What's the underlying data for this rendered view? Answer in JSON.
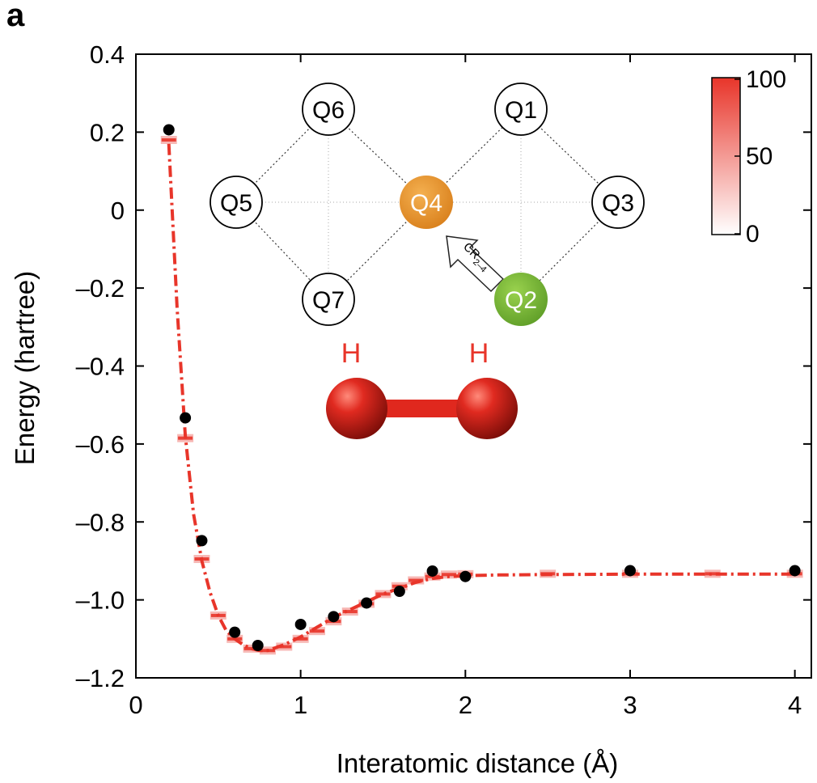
{
  "panel_label": "a",
  "chart_data": {
    "type": "line",
    "xlabel": "Interatomic distance (Å)",
    "ylabel": "Energy (hartree)",
    "xlim": [
      0,
      4.1
    ],
    "ylim": [
      -1.2,
      0.4
    ],
    "xticks": [
      0,
      1,
      2,
      3,
      4
    ],
    "xtick_labels": [
      "0",
      "1",
      "2",
      "3",
      "4"
    ],
    "yticks": [
      0.4,
      0.2,
      0,
      -0.2,
      -0.4,
      -0.6,
      -0.8,
      -1.0,
      -1.2
    ],
    "ytick_labels": [
      "0.4",
      "0.2",
      "0",
      "–0.2",
      "–0.4",
      "–0.6",
      "–0.8",
      "–1.0",
      "–1.2"
    ],
    "grid": false,
    "series": [
      {
        "style": "dash-dot line",
        "color": "#e8352a",
        "x": [
          0.2,
          0.25,
          0.3,
          0.35,
          0.4,
          0.45,
          0.5,
          0.55,
          0.6,
          0.65,
          0.7,
          0.75,
          0.8,
          0.9,
          1.0,
          1.1,
          1.2,
          1.3,
          1.4,
          1.5,
          1.6,
          1.7,
          1.8,
          1.9,
          2.0,
          2.2,
          2.5,
          3.0,
          3.5,
          4.0
        ],
        "y": [
          0.17,
          -0.25,
          -0.58,
          -0.78,
          -0.9,
          -0.98,
          -1.04,
          -1.08,
          -1.1,
          -1.115,
          -1.125,
          -1.13,
          -1.13,
          -1.115,
          -1.095,
          -1.07,
          -1.045,
          -1.025,
          -1.005,
          -0.985,
          -0.97,
          -0.955,
          -0.945,
          -0.94,
          -0.938,
          -0.936,
          -0.935,
          -0.934,
          -0.934,
          -0.934
        ]
      },
      {
        "style": "black dots",
        "color": "#000000",
        "x": [
          0.2,
          0.3,
          0.4,
          0.6,
          0.74,
          1.0,
          1.2,
          1.4,
          1.6,
          1.8,
          2.0,
          3.0,
          4.0
        ],
        "y": [
          0.206,
          -0.533,
          -0.848,
          -1.083,
          -1.117,
          -1.063,
          -1.043,
          -1.008,
          -0.978,
          -0.926,
          -0.94,
          -0.925,
          -0.925
        ]
      },
      {
        "style": "red bar markers (histogram)",
        "color": "#e8352a",
        "x": [
          0.2,
          0.3,
          0.4,
          0.5,
          0.6,
          0.7,
          0.8,
          0.9,
          1.0,
          1.1,
          1.2,
          1.3,
          1.4,
          1.5,
          1.6,
          1.7,
          1.8,
          1.9,
          2.0,
          2.5,
          3.0,
          3.5,
          4.0
        ],
        "y": [
          0.18,
          -0.585,
          -0.895,
          -1.04,
          -1.1,
          -1.125,
          -1.13,
          -1.12,
          -1.1,
          -1.08,
          -1.055,
          -1.03,
          -1.01,
          -0.985,
          -0.965,
          -0.95,
          -0.94,
          -0.935,
          -0.934,
          -0.933,
          -0.933,
          -0.933,
          -0.933
        ]
      }
    ],
    "colorbar": {
      "ticks": [
        "100",
        "50",
        "0"
      ],
      "range": [
        0,
        100
      ],
      "color_low": "#ffffff",
      "color_high": "#e8352a"
    }
  },
  "inset": {
    "qubits": [
      {
        "label": "Q6",
        "fill": "#ffffff",
        "text_color": "#000000"
      },
      {
        "label": "Q1",
        "fill": "#ffffff",
        "text_color": "#000000"
      },
      {
        "label": "Q5",
        "fill": "#ffffff",
        "text_color": "#000000"
      },
      {
        "label": "Q4",
        "fill": "#e8962a",
        "text_color": "#ffffff"
      },
      {
        "label": "Q3",
        "fill": "#ffffff",
        "text_color": "#000000"
      },
      {
        "label": "Q7",
        "fill": "#ffffff",
        "text_color": "#000000"
      },
      {
        "label": "Q2",
        "fill": "#7fbf3a",
        "text_color": "#ffffff"
      }
    ],
    "gate_label": "CR",
    "gate_subscript": "2–4",
    "molecule": {
      "atom_left": "H",
      "atom_right": "H",
      "atom_color": "#d8231c"
    }
  }
}
